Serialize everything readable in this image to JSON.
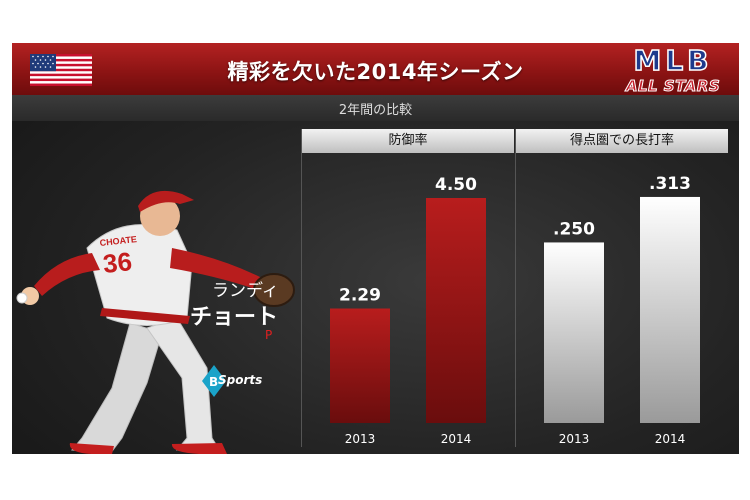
{
  "title": "精彩を欠いた2014年シーズン",
  "subtitle": "2年間の比較",
  "logo": {
    "line1": "MLB",
    "line2": "ALL STARS"
  },
  "player": {
    "name_line1": "ランディ",
    "name_line2": "チョート",
    "position": "P",
    "jersey": "36",
    "jersey_name": "CHOATE"
  },
  "brand": "Sports",
  "colors": {
    "title_bar": "#9e1a1a",
    "era_bar": "#b81d1d",
    "slg_bar": "#eeeeee",
    "accent": "#e02020"
  },
  "chart_data": [
    {
      "type": "bar",
      "title": "防御率",
      "categories": [
        "2013",
        "2014"
      ],
      "values": [
        2.29,
        4.5
      ],
      "value_labels": [
        "2.29",
        "4.50"
      ],
      "ylim": [
        0,
        5.2
      ]
    },
    {
      "type": "bar",
      "title": "得点圏での長打率",
      "categories": [
        "2013",
        "2014"
      ],
      "values": [
        0.25,
        0.313
      ],
      "value_labels": [
        ".250",
        ".313"
      ],
      "ylim": [
        0,
        0.36
      ]
    }
  ]
}
